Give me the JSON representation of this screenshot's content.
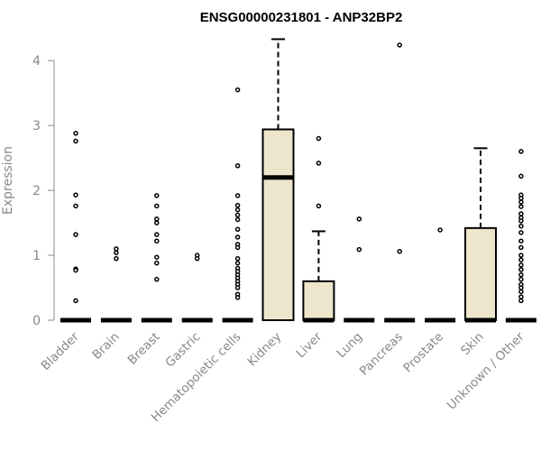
{
  "chart_data": {
    "type": "boxplot",
    "title": "ENSG00000231801 - ANP32BP2",
    "ylabel": "Expression",
    "xlabel": "",
    "ylim": [
      0,
      4.35
    ],
    "yticks": [
      0,
      1,
      2,
      3,
      4
    ],
    "categories": [
      "Bladder",
      "Brain",
      "Breast",
      "Gastric",
      "Hematopoietic cells",
      "Kidney",
      "Liver",
      "Lung",
      "Pancreas",
      "Prostate",
      "Skin",
      "Unknown / Other"
    ],
    "box_fill": "#ede6cc",
    "series": [
      {
        "category": "Bladder",
        "q1": 0,
        "median": 0,
        "q3": 0,
        "whisker_low": 0,
        "whisker_high": 0,
        "outliers": [
          2.88,
          2.76,
          1.93,
          1.76,
          1.32,
          0.79,
          0.77,
          0.3
        ]
      },
      {
        "category": "Brain",
        "q1": 0,
        "median": 0,
        "q3": 0,
        "whisker_low": 0,
        "whisker_high": 0,
        "outliers": [
          1.1,
          1.04,
          0.95
        ]
      },
      {
        "category": "Breast",
        "q1": 0,
        "median": 0,
        "q3": 0,
        "whisker_low": 0,
        "whisker_high": 0,
        "outliers": [
          1.92,
          1.76,
          1.56,
          1.5,
          1.32,
          1.22,
          0.97,
          0.88,
          0.63
        ]
      },
      {
        "category": "Gastric",
        "q1": 0,
        "median": 0,
        "q3": 0,
        "whisker_low": 0,
        "whisker_high": 0,
        "outliers": [
          1.0,
          0.95
        ]
      },
      {
        "category": "Hematopoietic cells",
        "q1": 0,
        "median": 0,
        "q3": 0,
        "whisker_low": 0,
        "whisker_high": 0,
        "outliers": [
          3.55,
          2.38,
          1.92,
          1.77,
          1.7,
          1.62,
          1.55,
          1.4,
          1.28,
          1.17,
          1.12,
          0.95,
          0.88,
          0.8,
          0.75,
          0.7,
          0.65,
          0.6,
          0.55,
          0.5,
          0.4,
          0.35
        ]
      },
      {
        "category": "Kidney",
        "q1": 0,
        "median": 2.2,
        "q3": 2.94,
        "whisker_low": 0,
        "whisker_high": 4.33,
        "outliers": []
      },
      {
        "category": "Liver",
        "q1": 0,
        "median": 0,
        "q3": 0.6,
        "whisker_low": 0,
        "whisker_high": 1.37,
        "outliers": [
          2.8,
          2.42,
          1.76
        ]
      },
      {
        "category": "Lung",
        "q1": 0,
        "median": 0,
        "q3": 0,
        "whisker_low": 0,
        "whisker_high": 0,
        "outliers": [
          1.56,
          1.09
        ]
      },
      {
        "category": "Pancreas",
        "q1": 0,
        "median": 0,
        "q3": 0,
        "whisker_low": 0,
        "whisker_high": 0,
        "outliers": [
          4.24,
          1.06
        ]
      },
      {
        "category": "Prostate",
        "q1": 0,
        "median": 0,
        "q3": 0,
        "whisker_low": 0,
        "whisker_high": 0,
        "outliers": [
          1.39
        ]
      },
      {
        "category": "Skin",
        "q1": 0,
        "median": 0,
        "q3": 1.42,
        "whisker_low": 0,
        "whisker_high": 2.65,
        "outliers": []
      },
      {
        "category": "Unknown / Other",
        "q1": 0,
        "median": 0,
        "q3": 0,
        "whisker_low": 0,
        "whisker_high": 0,
        "outliers": [
          2.6,
          2.22,
          1.93,
          1.88,
          1.82,
          1.75,
          1.64,
          1.58,
          1.53,
          1.45,
          1.35,
          1.22,
          1.12,
          1.0,
          0.93,
          0.85,
          0.78,
          0.7,
          0.63,
          0.55,
          0.5,
          0.44,
          0.36,
          0.3
        ]
      }
    ],
    "grid": false,
    "legend": "none"
  }
}
